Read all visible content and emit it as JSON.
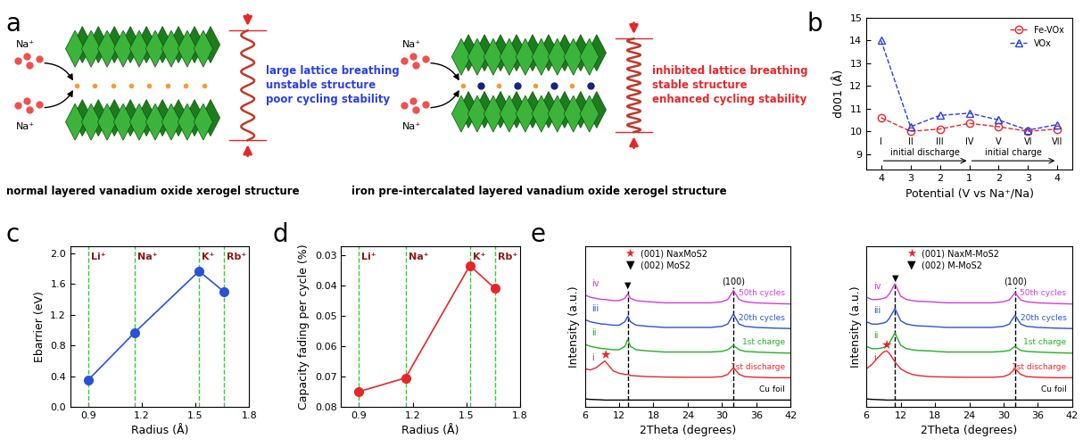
{
  "diagram": {
    "panel": "a",
    "left": {
      "ions": [
        "Na⁺",
        "Na⁺"
      ],
      "notes": [
        "large lattice breathing",
        "unstable structure",
        "poor cycling stability"
      ],
      "caption": "normal layered vanadium oxide xerogel structure"
    },
    "right": {
      "ions": [
        "Na⁺",
        "Na⁺"
      ],
      "notes": [
        "inhibited lattice breathing",
        "stable structure",
        "enhanced cycling stability"
      ],
      "caption": "iron pre-intercalated layered vanadium oxide xerogel structure"
    }
  },
  "chart_data": [
    {
      "panel": "b",
      "type": "line",
      "x_label": "Potential (V vs Na⁺/Na)",
      "y_label": "d001 (Å)",
      "categories": [
        "4",
        "3",
        "2",
        "1",
        "2",
        "3",
        "4"
      ],
      "point_labels": [
        "I",
        "II",
        "III",
        "IV",
        "V",
        "VI",
        "VII"
      ],
      "stages": [
        "initial discharge",
        "initial charge"
      ],
      "ylim": [
        8.3,
        15
      ],
      "yticks": [
        9,
        10,
        11,
        12,
        13,
        14,
        15
      ],
      "legend": "upper right",
      "series": [
        {
          "name": "Fe-VOx",
          "color": "#e8262a",
          "marker": "circle",
          "line_style": "dashed",
          "values": [
            10.6,
            10.0,
            10.1,
            10.35,
            10.2,
            10.0,
            10.1
          ]
        },
        {
          "name": "VOx",
          "color": "#2a3ee8",
          "marker": "triangle",
          "line_style": "dashed",
          "values": [
            14.0,
            10.2,
            10.7,
            10.8,
            10.5,
            10.05,
            10.3
          ]
        }
      ]
    },
    {
      "panel": "c",
      "type": "line",
      "x_label": "Radius (Å)",
      "y_label": "Ebarrier (eV)",
      "x": [
        0.9,
        1.16,
        1.52,
        1.66
      ],
      "xlim": [
        0.8,
        1.8
      ],
      "xticks": [
        0.9,
        1.2,
        1.5,
        1.8
      ],
      "ylim": [
        0.0,
        2.1
      ],
      "yticks": [
        0.0,
        0.4,
        0.8,
        1.2,
        1.6,
        2.0
      ],
      "ion_lines": [
        {
          "x": 0.9,
          "label": "Li⁺"
        },
        {
          "x": 1.16,
          "label": "Na⁺"
        },
        {
          "x": 1.52,
          "label": "K⁺"
        },
        {
          "x": 1.66,
          "label": "Rb⁺"
        }
      ],
      "series": [
        {
          "color": "#2a52d6",
          "marker": "circle",
          "line_style": "solid",
          "values": [
            0.35,
            0.97,
            1.77,
            1.5
          ]
        }
      ]
    },
    {
      "panel": "d",
      "type": "line",
      "x_label": "Radius (Å)",
      "y_label": "Capacity fading per cycle (%)",
      "x": [
        0.9,
        1.16,
        1.52,
        1.66
      ],
      "xlim": [
        0.8,
        1.8
      ],
      "xticks": [
        0.9,
        1.2,
        1.5,
        1.8
      ],
      "ylim": [
        0.08,
        0.027
      ],
      "yticks": [
        0.03,
        0.04,
        0.05,
        0.06,
        0.07,
        0.08
      ],
      "ion_lines": [
        {
          "x": 0.9,
          "label": "Li⁺"
        },
        {
          "x": 1.16,
          "label": "Na⁺"
        },
        {
          "x": 1.52,
          "label": "K⁺"
        },
        {
          "x": 1.66,
          "label": "Rb⁺"
        }
      ],
      "series": [
        {
          "color": "#e8262a",
          "marker": "circle",
          "line_style": "solid",
          "values": [
            0.075,
            0.0705,
            0.0335,
            0.041
          ]
        }
      ]
    },
    {
      "panel": "e",
      "type": "line",
      "x_label": "2Theta (degrees)",
      "y_label": "Intensity (a.u.)",
      "tick_labels": "x",
      "x": [
        6,
        7,
        8,
        9,
        9.5,
        10,
        11,
        12,
        13,
        13.5,
        14,
        15,
        17,
        20,
        24,
        28,
        30,
        31,
        32,
        33,
        34,
        36,
        39,
        42
      ],
      "xlim": [
        6,
        42
      ],
      "xticks": [
        6,
        12,
        18,
        24,
        30,
        36,
        42
      ],
      "ylim": [
        0,
        7.2
      ],
      "key": [
        {
          "symbol": "★",
          "text": "(001) NaxMoS2",
          "color": "#e8262a"
        },
        {
          "symbol": "▼",
          "text": "(002) MoS2",
          "color": "#000000"
        }
      ],
      "peak_lines": [
        {
          "x": 13.5,
          "y": 5.45,
          "text": "▼"
        },
        {
          "x": 32,
          "y": 5.6,
          "text": "(100)"
        }
      ],
      "peak_markers": [
        {
          "x": 9.5,
          "y": 2.3,
          "text": "★",
          "color": "#e8262a"
        }
      ],
      "series": [
        {
          "name": "Cu foil",
          "label": null,
          "color": "#000000",
          "values": [
            0.35,
            0.33,
            0.32,
            0.31,
            0.3,
            0.3,
            0.3,
            0.3,
            0.3,
            0.3,
            0.3,
            0.3,
            0.3,
            0.3,
            0.3,
            0.3,
            0.3,
            0.3,
            0.3,
            0.3,
            0.3,
            0.3,
            0.3,
            0.3
          ]
        },
        {
          "name": "1st discharge",
          "label": "i",
          "color": "#e8262a",
          "values": [
            1.7,
            1.65,
            1.75,
            1.95,
            2.05,
            1.9,
            1.6,
            1.5,
            1.45,
            1.45,
            1.4,
            1.38,
            1.35,
            1.33,
            1.32,
            1.32,
            1.35,
            1.45,
            1.75,
            1.45,
            1.35,
            1.32,
            1.3,
            1.3
          ]
        },
        {
          "name": "1st charge",
          "label": "ii",
          "color": "#22b022",
          "values": [
            2.8,
            2.7,
            2.65,
            2.6,
            2.6,
            2.58,
            2.55,
            2.55,
            2.7,
            3.0,
            2.7,
            2.55,
            2.5,
            2.45,
            2.45,
            2.45,
            2.48,
            2.55,
            2.75,
            2.55,
            2.48,
            2.45,
            2.42,
            2.4
          ]
        },
        {
          "name": "20th cycles",
          "label": "iii",
          "color": "#2a52d6",
          "values": [
            3.9,
            3.8,
            3.75,
            3.7,
            3.7,
            3.68,
            3.65,
            3.65,
            3.8,
            4.05,
            3.8,
            3.65,
            3.6,
            3.55,
            3.55,
            3.55,
            3.6,
            3.7,
            4.15,
            3.7,
            3.6,
            3.55,
            3.52,
            3.5
          ]
        },
        {
          "name": "50th cycles",
          "label": "iv",
          "color": "#d63ad6",
          "values": [
            5.0,
            4.9,
            4.85,
            4.8,
            4.8,
            4.78,
            4.75,
            4.75,
            4.85,
            5.05,
            4.85,
            4.75,
            4.7,
            4.65,
            4.65,
            4.65,
            4.7,
            4.8,
            5.2,
            4.8,
            4.7,
            4.65,
            4.62,
            4.6
          ]
        }
      ]
    },
    {
      "type": "line",
      "x_label": "2Theta (degrees)",
      "y_label": "Intensity (a.u.)",
      "tick_labels": "x",
      "x": [
        6,
        7,
        8,
        9,
        9.5,
        10,
        11,
        12,
        13,
        13.5,
        14,
        15,
        17,
        20,
        24,
        28,
        30,
        31,
        32,
        33,
        34,
        36,
        39,
        42
      ],
      "xlim": [
        6,
        42
      ],
      "xticks": [
        6,
        12,
        18,
        24,
        30,
        36,
        42
      ],
      "ylim": [
        0,
        7.2
      ],
      "key": [
        {
          "symbol": "★",
          "text": "(001) NaxM-MoS2",
          "color": "#e8262a"
        },
        {
          "symbol": "▼",
          "text": "(002) M-MoS2",
          "color": "#000000"
        }
      ],
      "peak_lines": [
        {
          "x": 11,
          "y": 5.75,
          "text": "▼"
        },
        {
          "x": 32,
          "y": 5.6,
          "text": "(100)"
        }
      ],
      "peak_markers": [
        {
          "x": 9.5,
          "y": 2.75,
          "text": "★",
          "color": "#e8262a"
        }
      ],
      "series": [
        {
          "name": "Cu foil",
          "label": null,
          "color": "#000000",
          "values": [
            0.35,
            0.33,
            0.32,
            0.31,
            0.3,
            0.3,
            0.3,
            0.3,
            0.3,
            0.3,
            0.3,
            0.3,
            0.3,
            0.3,
            0.3,
            0.3,
            0.3,
            0.3,
            0.3,
            0.3,
            0.3,
            0.3,
            0.3,
            0.3
          ]
        },
        {
          "name": "1st discharge",
          "label": "i",
          "color": "#e8262a",
          "values": [
            1.7,
            1.9,
            2.2,
            2.45,
            2.5,
            2.4,
            2.0,
            1.7,
            1.55,
            1.5,
            1.45,
            1.4,
            1.35,
            1.33,
            1.32,
            1.32,
            1.35,
            1.45,
            1.7,
            1.45,
            1.35,
            1.32,
            1.3,
            1.3
          ]
        },
        {
          "name": "1st charge",
          "label": "ii",
          "color": "#22b022",
          "values": [
            2.7,
            2.6,
            2.6,
            2.65,
            2.7,
            2.85,
            3.3,
            2.75,
            2.6,
            2.58,
            2.55,
            2.52,
            2.5,
            2.45,
            2.45,
            2.45,
            2.48,
            2.52,
            2.7,
            2.52,
            2.48,
            2.45,
            2.42,
            2.4
          ]
        },
        {
          "name": "20th cycles",
          "label": "iii",
          "color": "#2a52d6",
          "values": [
            3.8,
            3.7,
            3.7,
            3.75,
            3.8,
            3.95,
            4.4,
            3.85,
            3.7,
            3.68,
            3.65,
            3.62,
            3.6,
            3.55,
            3.55,
            3.55,
            3.6,
            3.7,
            4.1,
            3.7,
            3.6,
            3.55,
            3.52,
            3.5
          ]
        },
        {
          "name": "50th cycles",
          "label": "iv",
          "color": "#d63ad6",
          "values": [
            4.9,
            4.8,
            4.8,
            4.85,
            4.9,
            5.05,
            5.5,
            4.95,
            4.8,
            4.78,
            4.75,
            4.72,
            4.7,
            4.65,
            4.65,
            4.65,
            4.7,
            4.78,
            5.1,
            4.78,
            4.7,
            4.65,
            4.62,
            4.6
          ]
        }
      ]
    }
  ]
}
